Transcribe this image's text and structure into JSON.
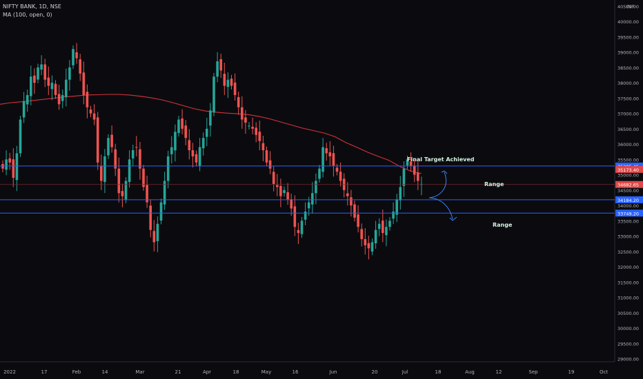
{
  "header": {
    "symbol_line": "NIFTY BANK, 1D, NSE",
    "indicator_line": "MA (100, open, 0)"
  },
  "currency": "INR",
  "colors": {
    "background": "#0b0b0f",
    "up": "#26a69a",
    "down": "#ef5350",
    "ma": "#d6323b",
    "level_line": "#2962ff",
    "text": "#b2b5be",
    "price_tag_red": "#e04848",
    "price_tag_blue": "#2962ff"
  },
  "chart_data": {
    "type": "candlestick",
    "title": "NIFTY BANK, 1D, NSE",
    "x_ticks": [
      "2022",
      "17",
      "Feb",
      "14",
      "Mar",
      "21",
      "Apr",
      "18",
      "May",
      "16",
      "Jun",
      "20",
      "Jul",
      "18",
      "Aug",
      "12",
      "Sep",
      "19",
      "Oct"
    ],
    "y_ticks": [
      29000,
      29500,
      30000,
      30500,
      31000,
      31500,
      32000,
      32500,
      33000,
      33500,
      34000,
      34500,
      35000,
      35500,
      36000,
      36500,
      37000,
      37500,
      38000,
      38500,
      39000,
      39500,
      40000,
      40500
    ],
    "ylim": [
      28900,
      40700
    ],
    "series_close": [
      35200,
      35500,
      35400,
      34900,
      35700,
      36800,
      37400,
      37600,
      38200,
      38000,
      38500,
      38600,
      38100,
      37900,
      38000,
      37600,
      37300,
      37600,
      38100,
      38500,
      39100,
      38800,
      38300,
      37600,
      37200,
      37000,
      36800,
      35400,
      34800,
      35600,
      36200,
      35900,
      35200,
      34400,
      34300,
      34800,
      35500,
      35800,
      35900,
      35200,
      34600,
      34100,
      33200,
      32800,
      33400,
      34100,
      34800,
      35600,
      35900,
      36400,
      36800,
      36500,
      36200,
      35800,
      35600,
      35400,
      35900,
      36200,
      36500,
      37100,
      38200,
      38700,
      38400,
      37900,
      38100,
      37900,
      37600,
      37200,
      36800,
      36700,
      36600,
      36500,
      36300,
      36100,
      35800,
      35400,
      35200,
      34700,
      34600,
      34300,
      34500,
      34200,
      33900,
      33300,
      33100,
      33500,
      33800,
      34100,
      34400,
      34800,
      35200,
      35900,
      35700,
      35600,
      35300,
      35100,
      34800,
      34500,
      34300,
      34000,
      33600,
      33300,
      32900,
      32700,
      32600,
      32800,
      33200,
      33400,
      33100,
      33300,
      33500,
      33800,
      34200,
      34600,
      35200,
      35500,
      35300,
      35000,
      34800,
      34700
    ],
    "ma100": [
      37300,
      37350,
      37380,
      37420,
      37460,
      37500,
      37540,
      37570,
      37600,
      37610,
      37620,
      37620,
      37600,
      37560,
      37510,
      37440,
      37350,
      37250,
      37150,
      37080,
      37040,
      37010,
      36990,
      36960,
      36900,
      36820,
      36720,
      36620,
      36520,
      36440,
      36360,
      36240,
      36050,
      35900,
      35740,
      35600,
      35470,
      35270,
      35120,
      35040
    ],
    "levels": [
      {
        "price": 35285.45,
        "label": "35285.45",
        "color": "blue"
      },
      {
        "price": 34184.2,
        "label": "34184.20",
        "color": "blue"
      },
      {
        "price": 33749.2,
        "label": "33749.20",
        "color": "blue"
      },
      {
        "price": 34682.65,
        "label": "34682.65",
        "color": "red"
      },
      {
        "price": 35173.4,
        "label": "35173.40",
        "color": "red"
      }
    ],
    "annotations": [
      {
        "text": "Final Target Achieved"
      },
      {
        "text": "Range"
      },
      {
        "text": "Range"
      }
    ]
  }
}
